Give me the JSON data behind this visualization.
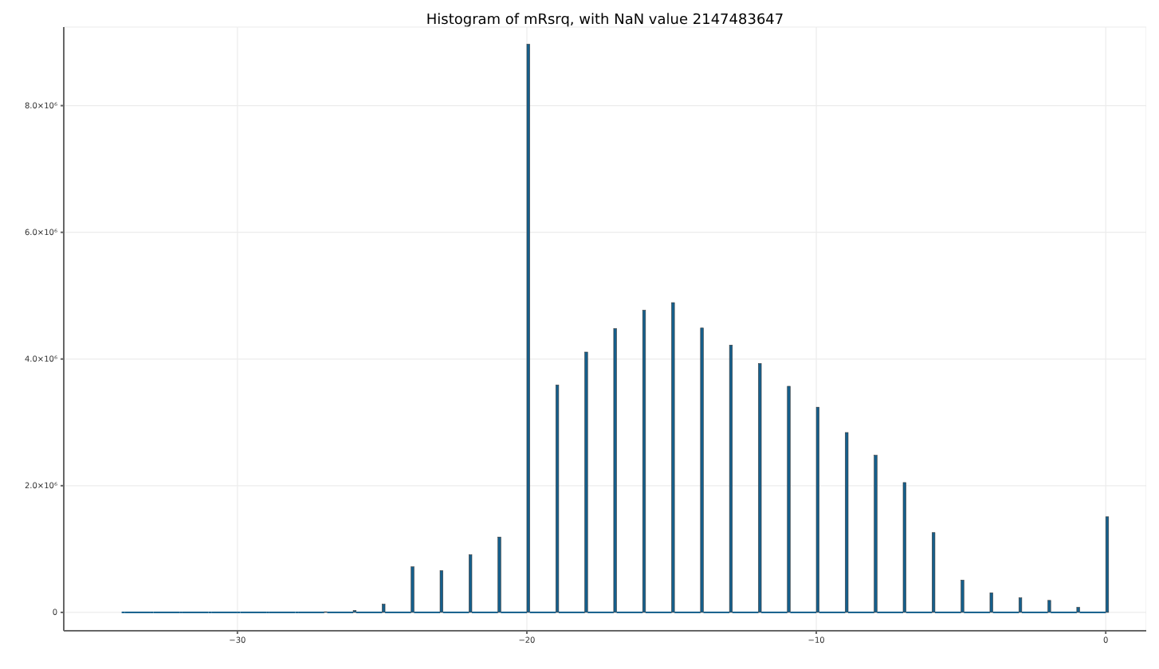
{
  "chart_data": {
    "type": "histogram",
    "title": "Histogram of mRsrq, with NaN value 2147483647",
    "bins": [
      -34,
      -33.9,
      -33,
      -32.9,
      -32,
      -31.9,
      -31,
      -30.9,
      -30,
      -29.9,
      -29,
      -28.9,
      -28,
      -27.9,
      -27,
      -26.9,
      -26,
      -25.9,
      -25,
      -24.9,
      -24,
      -23.9,
      -23,
      -22.9,
      -22,
      -21.9,
      -21,
      -20.9,
      -20,
      -19.9,
      -19,
      -18.9,
      -18,
      -17.9,
      -17,
      -16.9,
      -16,
      -15.9,
      -15,
      -14.9,
      -14,
      -13.9,
      -13,
      -12.9,
      -12,
      -11.9,
      -11,
      -10.9,
      -10,
      -9.9,
      -9,
      -8.9,
      -8,
      -7.9,
      -7,
      -6.9,
      -6,
      -5.9,
      -5,
      -4.9,
      -4,
      -3.9,
      -3,
      -2.9,
      -2,
      -1.9,
      -1,
      -0.9,
      0,
      0.1
    ],
    "values": [
      0,
      0,
      0,
      0,
      0,
      0,
      0,
      0,
      0,
      0,
      0,
      0,
      0,
      0,
      10000,
      0,
      30000,
      0,
      130000,
      0,
      720000,
      0,
      660000,
      0,
      910000,
      0,
      1190000,
      0,
      8970000,
      0,
      3590000,
      0,
      4110000,
      0,
      4480000,
      0,
      4770000,
      0,
      4890000,
      0,
      4490000,
      0,
      4220000,
      0,
      3930000,
      0,
      3570000,
      0,
      3240000,
      0,
      2840000,
      0,
      2480000,
      0,
      2050000,
      0,
      1260000,
      0,
      510000,
      0,
      310000,
      0,
      230000,
      0,
      190000,
      0,
      80000,
      0,
      1510000
    ],
    "color": "#155f8c",
    "xlim": [
      -36,
      1.4
    ],
    "xticks": [
      {
        "value": -30,
        "label": "−30"
      },
      {
        "value": -20,
        "label": "−20"
      },
      {
        "value": -10,
        "label": "−10"
      },
      0
    ],
    "ylim": [
      -290000,
      9240000
    ],
    "yticks": [
      0,
      {
        "value": 2000000,
        "label": "2.0×10⁶"
      },
      {
        "value": 4000000,
        "label": "4.0×10⁶"
      },
      {
        "value": 6000000,
        "label": "6.0×10⁶"
      },
      {
        "value": 8000000,
        "label": "8.0×10⁶"
      }
    ],
    "grid": true
  }
}
